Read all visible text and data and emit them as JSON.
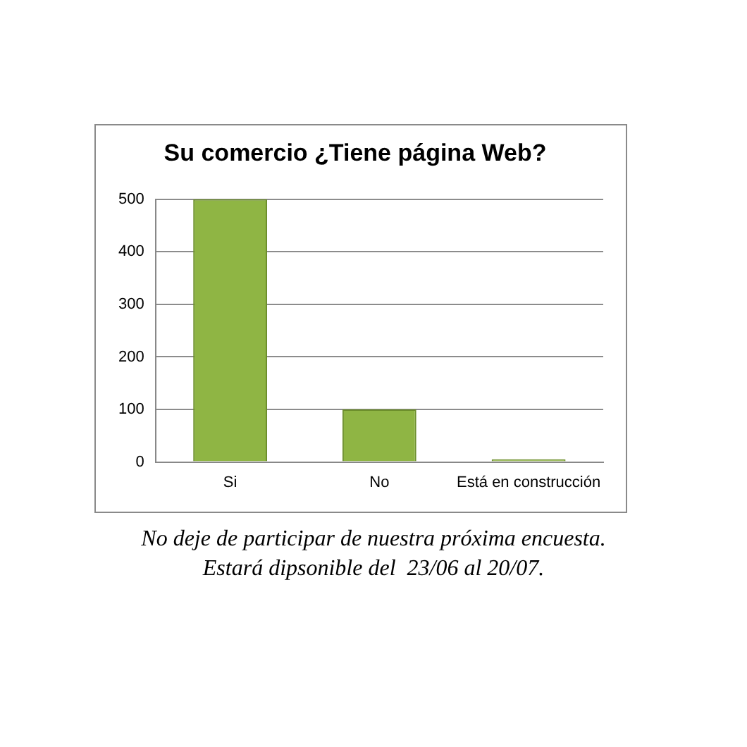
{
  "chart_data": {
    "type": "bar",
    "title": "Su comercio ¿Tiene página Web?",
    "categories": [
      "Si",
      "No",
      "Está en construcción"
    ],
    "values": [
      500,
      100,
      5
    ],
    "color": "#8fb544",
    "ylim": [
      0,
      500
    ],
    "yticks": [
      0,
      100,
      200,
      300,
      400,
      500
    ],
    "grid": "y",
    "legend": false,
    "annotations": [
      "No deje de participar de nuestra próxima encuesta.",
      "Estará dipsonible del  23/06 al 20/07."
    ]
  }
}
